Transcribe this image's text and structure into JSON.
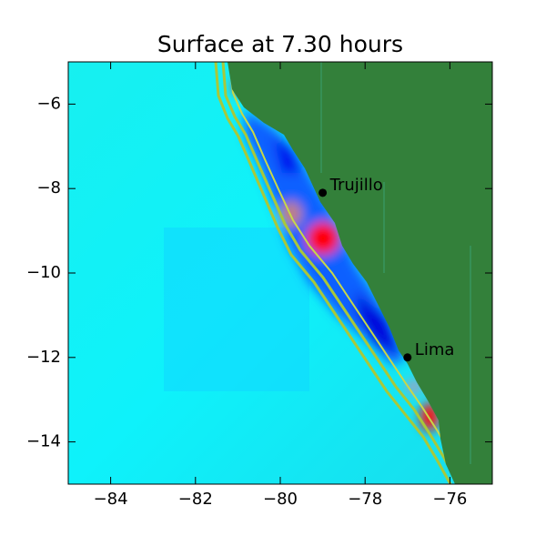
{
  "chart_data": {
    "type": "map",
    "title": "Surface at 7.30 hours",
    "xlim": [
      -85,
      -75
    ],
    "ylim": [
      -15,
      -5
    ],
    "xticks": [
      {
        "value": -84,
        "label": "−84"
      },
      {
        "value": -82,
        "label": "−82"
      },
      {
        "value": -80,
        "label": "−80"
      },
      {
        "value": -78,
        "label": "−78"
      },
      {
        "value": -76,
        "label": "−76"
      }
    ],
    "yticks": [
      {
        "value": -14,
        "label": "−14"
      },
      {
        "value": -12,
        "label": "−12"
      },
      {
        "value": -10,
        "label": "−10"
      },
      {
        "value": -8,
        "label": "−8"
      },
      {
        "value": -6,
        "label": "−6"
      }
    ],
    "points": [
      {
        "name": "Trujillo",
        "x": -79,
        "y": -8.1
      },
      {
        "name": "Lima",
        "x": -77,
        "y": -12
      }
    ],
    "point_color": "#000000"
  }
}
